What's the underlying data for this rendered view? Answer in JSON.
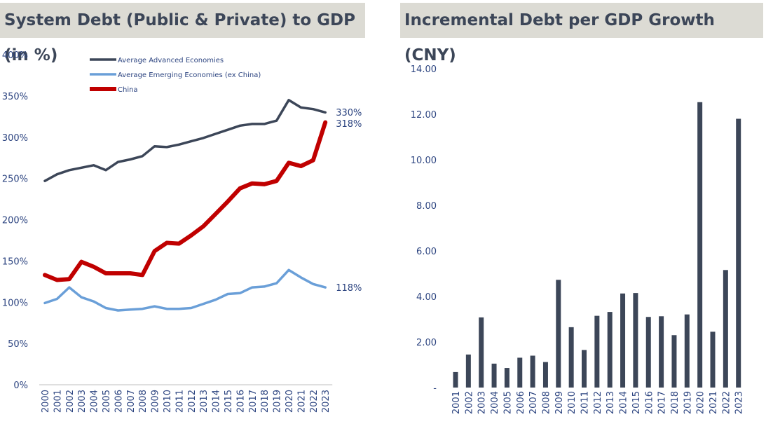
{
  "chart_data": [
    {
      "type": "line",
      "title": "System Debt (Public & Private) to GDP (in %)",
      "x": [
        "2000",
        "2001",
        "2002",
        "2003",
        "2004",
        "2005",
        "2006",
        "2007",
        "2008",
        "2009",
        "2010",
        "2011",
        "2012",
        "2013",
        "2014",
        "2015",
        "2016",
        "2017",
        "2018",
        "2019",
        "2020",
        "2021",
        "2022",
        "2023"
      ],
      "y_ticks": [
        "0%",
        "50%",
        "100%",
        "150%",
        "200%",
        "250%",
        "300%",
        "350%",
        "400%"
      ],
      "ylim": [
        0,
        400
      ],
      "legend_position": "top-left",
      "grid": false,
      "series": [
        {
          "name": "Average Advanced Economies",
          "color": "#3c4658",
          "end_label": "330%",
          "values": [
            247,
            255,
            260,
            263,
            266,
            260,
            270,
            273,
            277,
            289,
            288,
            291,
            295,
            299,
            304,
            309,
            314,
            316,
            316,
            320,
            345,
            336,
            334,
            330
          ]
        },
        {
          "name": "Average Emerging Economies (ex China)",
          "color": "#6a9fd8",
          "end_label": "118%",
          "values": [
            99,
            104,
            118,
            106,
            101,
            93,
            90,
            91,
            92,
            95,
            92,
            92,
            93,
            98,
            103,
            110,
            111,
            118,
            119,
            123,
            139,
            130,
            122,
            118
          ]
        },
        {
          "name": "China",
          "color": "#c00000",
          "end_label": "318%",
          "values": [
            133,
            127,
            128,
            149,
            143,
            135,
            135,
            135,
            133,
            162,
            172,
            171,
            181,
            192,
            207,
            222,
            238,
            244,
            243,
            247,
            269,
            265,
            272,
            318
          ]
        }
      ]
    },
    {
      "type": "bar",
      "title": "Incremental Debt per GDP Growth (CNY)",
      "categories": [
        "2001",
        "2002",
        "2003",
        "2004",
        "2005",
        "2006",
        "2007",
        "2008",
        "2009",
        "2010",
        "2011",
        "2012",
        "2013",
        "2014",
        "2015",
        "2016",
        "2017",
        "2018",
        "2019",
        "2020",
        "2021",
        "2022",
        "2023"
      ],
      "values": [
        0.68,
        1.45,
        3.08,
        1.05,
        0.86,
        1.31,
        1.4,
        1.12,
        4.73,
        2.65,
        1.65,
        3.15,
        3.32,
        4.13,
        4.15,
        3.1,
        3.13,
        2.3,
        3.21,
        12.53,
        2.45,
        5.16,
        11.8
      ],
      "y_ticks": [
        "-",
        "2.00",
        "4.00",
        "6.00",
        "8.00",
        "10.00",
        "12.00",
        "14.00"
      ],
      "ylim": [
        0,
        14
      ],
      "color": "#3c4658",
      "grid": false
    }
  ]
}
